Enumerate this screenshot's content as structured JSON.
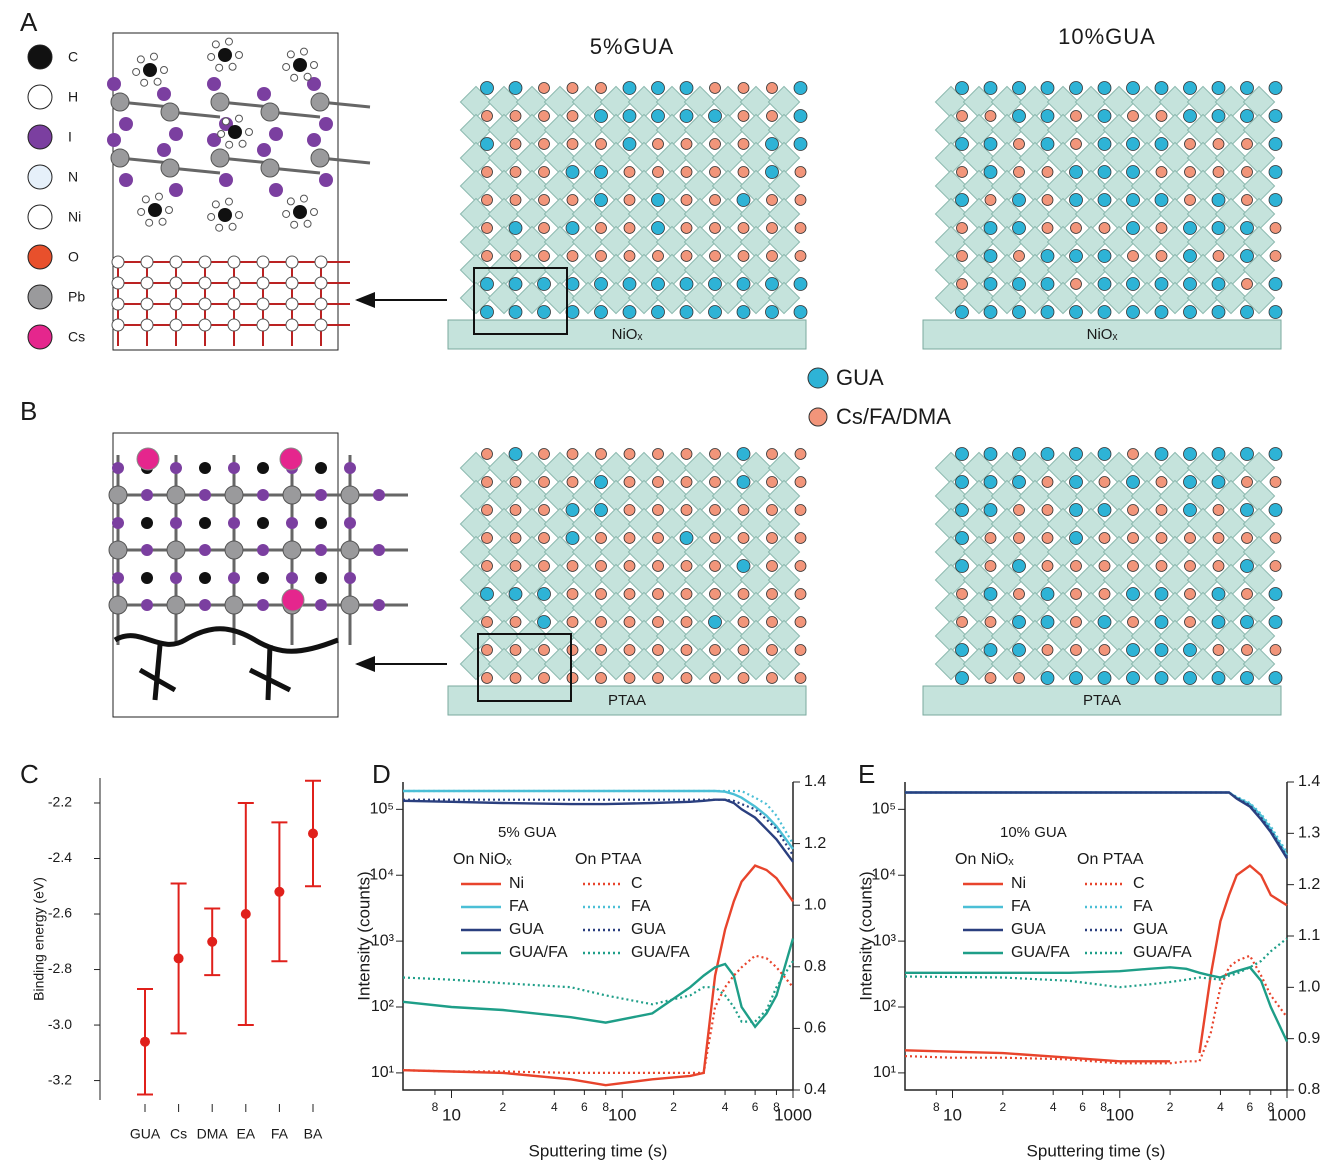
{
  "panel_labels": [
    "A",
    "B",
    "C",
    "D",
    "E"
  ],
  "atom_legend": [
    {
      "label": "C",
      "color": "#111111"
    },
    {
      "label": "H",
      "color": "#ffffff"
    },
    {
      "label": "I",
      "color": "#7b3fa0"
    },
    {
      "label": "N",
      "color": "#e6f0fa"
    },
    {
      "label": "Ni",
      "color": "#ffffff"
    },
    {
      "label": "O",
      "color": "#e8502c"
    },
    {
      "label": "Pb",
      "color": "#9a9a9c"
    },
    {
      "label": "Cs",
      "color": "#e5268d"
    }
  ],
  "lattice_panels": [
    {
      "title": "5%GUA",
      "substrate": "NiOₓ"
    },
    {
      "title": "10%GUA",
      "substrate": "NiOₓ"
    },
    {
      "substrate": "PTAA"
    },
    {
      "substrate": "PTAA"
    }
  ],
  "cation_legend": [
    {
      "label": "GUA",
      "color": "#2eb3d6"
    },
    {
      "label": "Cs/FA/DMA",
      "color": "#f2957a"
    }
  ],
  "chart_data": [
    {
      "type": "errorbar",
      "y_label": "Binding energy (eV)",
      "color": "#e0201b",
      "categories": [
        "GUA",
        "Cs",
        "DMA",
        "EA",
        "FA",
        "BA"
      ],
      "values": [
        -3.06,
        -2.76,
        -2.7,
        -2.6,
        -2.52,
        -2.31
      ],
      "errors": [
        0.19,
        0.27,
        0.12,
        0.4,
        0.25,
        0.19
      ],
      "ylim": [
        -3.27,
        -2.11
      ],
      "yticks": [
        -2.2,
        -2.4,
        -2.6,
        -2.8,
        {
          "value": -3,
          "label": "-3.0"
        },
        -3.2
      ]
    },
    {
      "type": "line",
      "annotation": "5% GUA",
      "x_label": "Sputtering time (s)",
      "y_label": "Intensity (counts)",
      "log_x": true,
      "log_y": true,
      "legend_groups": [
        "On NiOₓ",
        "On PTAA"
      ],
      "xlim": [
        5.2,
        1000
      ],
      "xticks": [
        {
          "value": 8,
          "label": "8"
        },
        10,
        {
          "value": 20,
          "label": "2"
        },
        {
          "value": 40,
          "label": "4"
        },
        {
          "value": 60,
          "label": "6"
        },
        {
          "value": 80,
          "label": "8"
        },
        100,
        {
          "value": 200,
          "label": "2"
        },
        {
          "value": 400,
          "label": "4"
        },
        {
          "value": 600,
          "label": "6"
        },
        {
          "value": 800,
          "label": "8"
        },
        1000
      ],
      "ylim": [
        5.5,
        260000
      ],
      "yticks": [
        {
          "value": 10,
          "label": "10¹"
        },
        {
          "value": 100,
          "label": "10²"
        },
        {
          "value": 1000,
          "label": "10³"
        },
        {
          "value": 10000,
          "label": "10⁴"
        },
        {
          "value": 100000,
          "label": "10⁵"
        }
      ],
      "y2lim": [
        0.4,
        1.4
      ],
      "y2ticks": [
        0.4,
        0.6,
        0.8,
        {
          "value": 1,
          "label": "1.0"
        },
        1.2,
        1.4
      ],
      "x": [
        5.2,
        10,
        20,
        50,
        80,
        150,
        250,
        300,
        350,
        400,
        450,
        500,
        600,
        700,
        800,
        1000
      ],
      "series": [
        {
          "name": "Ni",
          "group": 0,
          "color": "#e8442c",
          "dashed": false,
          "values": [
            11,
            10.5,
            10,
            8,
            6.5,
            8,
            9,
            10,
            300,
            1500,
            4000,
            8000,
            14000,
            12000,
            9000,
            4000
          ]
        },
        {
          "name": "FA",
          "group": 0,
          "color": "#4bbfd6",
          "dashed": false,
          "values": [
            190000,
            190000,
            190000,
            190000,
            190000,
            190000,
            190000,
            190000,
            190000,
            185000,
            170000,
            150000,
            110000,
            80000,
            55000,
            25000
          ]
        },
        {
          "name": "GUA",
          "group": 0,
          "color": "#2a3f7f",
          "dashed": false,
          "values": [
            135000,
            130000,
            125000,
            120000,
            120000,
            125000,
            130000,
            135000,
            140000,
            140000,
            125000,
            100000,
            75000,
            50000,
            35000,
            16000
          ]
        },
        {
          "name": "GUA/FA",
          "group": 0,
          "color": "#1e9e88",
          "dashed": false,
          "values": [
            120,
            100,
            90,
            70,
            58,
            80,
            200,
            300,
            400,
            450,
            300,
            100,
            50,
            80,
            150,
            1100
          ]
        },
        {
          "name": "C",
          "group": 1,
          "color": "#e8442c",
          "dashed": true,
          "values": [
            11,
            10.5,
            10.5,
            10,
            10,
            10,
            10,
            10,
            100,
            200,
            300,
            400,
            600,
            550,
            400,
            200
          ]
        },
        {
          "name": "FA",
          "group": 1,
          "color": "#4bbfd6",
          "dashed": true,
          "values": [
            190000,
            190000,
            190000,
            190000,
            190000,
            190000,
            190000,
            190000,
            190000,
            190000,
            190000,
            190000,
            150000,
            120000,
            80000,
            30000
          ]
        },
        {
          "name": "GUA",
          "group": 1,
          "color": "#2a3f7f",
          "dashed": true,
          "values": [
            140000,
            140000,
            140000,
            140000,
            140000,
            140000,
            140000,
            140000,
            140000,
            140000,
            135000,
            120000,
            100000,
            70000,
            50000,
            20000
          ]
        },
        {
          "name": "GUA/FA",
          "group": 1,
          "color": "#1e9e88",
          "dashed": true,
          "values": [
            280,
            260,
            230,
            200,
            150,
            110,
            150,
            200,
            200,
            150,
            100,
            60,
            60,
            90,
            200,
            500
          ]
        }
      ]
    },
    {
      "type": "line",
      "annotation": "10% GUA",
      "x_label": "Sputtering time (s)",
      "y_label": "Intensity (counts)",
      "log_x": true,
      "log_y": true,
      "legend_groups": [
        "On NiOₓ",
        "On PTAA"
      ],
      "xlim": [
        5.2,
        1000
      ],
      "xticks": [
        {
          "value": 8,
          "label": "8"
        },
        10,
        {
          "value": 20,
          "label": "2"
        },
        {
          "value": 40,
          "label": "4"
        },
        {
          "value": 60,
          "label": "6"
        },
        {
          "value": 80,
          "label": "8"
        },
        100,
        {
          "value": 200,
          "label": "2"
        },
        {
          "value": 400,
          "label": "4"
        },
        {
          "value": 600,
          "label": "6"
        },
        {
          "value": 800,
          "label": "8"
        },
        1000
      ],
      "ylim": [
        5.5,
        260000
      ],
      "yticks": [
        {
          "value": 10,
          "label": "10¹"
        },
        {
          "value": 100,
          "label": "10²"
        },
        {
          "value": 1000,
          "label": "10³"
        },
        {
          "value": 10000,
          "label": "10⁴"
        },
        {
          "value": 100000,
          "label": "10⁵"
        }
      ],
      "y2lim": [
        0.8,
        1.4
      ],
      "y2ticks": [
        0.8,
        0.9,
        {
          "value": 1,
          "label": "1.0"
        },
        1.1,
        1.2,
        1.3,
        1.4
      ],
      "x": [
        5.2,
        10,
        20,
        50,
        100,
        150,
        200,
        250,
        300,
        350,
        400,
        450,
        500,
        600,
        700,
        800,
        1000
      ],
      "series": [
        {
          "name": "Ni",
          "group": 0,
          "color": "#e8442c",
          "dashed": false,
          "values": [
            22,
            21,
            20,
            17,
            15,
            15,
            15,
            null,
            20,
            300,
            2000,
            5000,
            10000,
            14000,
            10000,
            5000,
            3500
          ]
        },
        {
          "name": "FA",
          "group": 0,
          "color": "#4bbfd6",
          "dashed": false,
          "values": [
            180000,
            180000,
            180000,
            180000,
            180000,
            180000,
            180000,
            180000,
            180000,
            180000,
            180000,
            180000,
            150000,
            120000,
            80000,
            50000,
            20000
          ]
        },
        {
          "name": "GUA",
          "group": 0,
          "color": "#2a3f7f",
          "dashed": false,
          "values": [
            180000,
            180000,
            180000,
            180000,
            180000,
            180000,
            180000,
            180000,
            180000,
            180000,
            180000,
            180000,
            145000,
            110000,
            70000,
            45000,
            18000
          ]
        },
        {
          "name": "GUA/FA",
          "group": 0,
          "color": "#1e9e88",
          "dashed": false,
          "values": [
            330,
            330,
            330,
            330,
            350,
            380,
            400,
            380,
            330,
            300,
            280,
            320,
            350,
            400,
            250,
            100,
            30
          ]
        },
        {
          "name": "C",
          "group": 1,
          "color": "#e8442c",
          "dashed": true,
          "values": [
            18,
            17,
            17,
            16,
            14,
            14,
            14,
            15,
            15,
            40,
            200,
            400,
            500,
            600,
            300,
            150,
            70
          ]
        },
        {
          "name": "FA",
          "group": 1,
          "color": "#4bbfd6",
          "dashed": true,
          "values": [
            180000,
            180000,
            180000,
            180000,
            180000,
            180000,
            180000,
            180000,
            180000,
            180000,
            180000,
            180000,
            155000,
            125000,
            85000,
            55000,
            22000
          ]
        },
        {
          "name": "GUA",
          "group": 1,
          "color": "#2a3f7f",
          "dashed": true,
          "values": [
            180000,
            180000,
            180000,
            180000,
            180000,
            180000,
            180000,
            180000,
            180000,
            180000,
            180000,
            180000,
            150000,
            115000,
            75000,
            48000,
            19000
          ]
        },
        {
          "name": "GUA/FA",
          "group": 1,
          "color": "#1e9e88",
          "dashed": true,
          "values": [
            290,
            285,
            280,
            250,
            200,
            220,
            240,
            260,
            280,
            270,
            260,
            300,
            320,
            400,
            500,
            700,
            1100
          ]
        }
      ]
    }
  ]
}
